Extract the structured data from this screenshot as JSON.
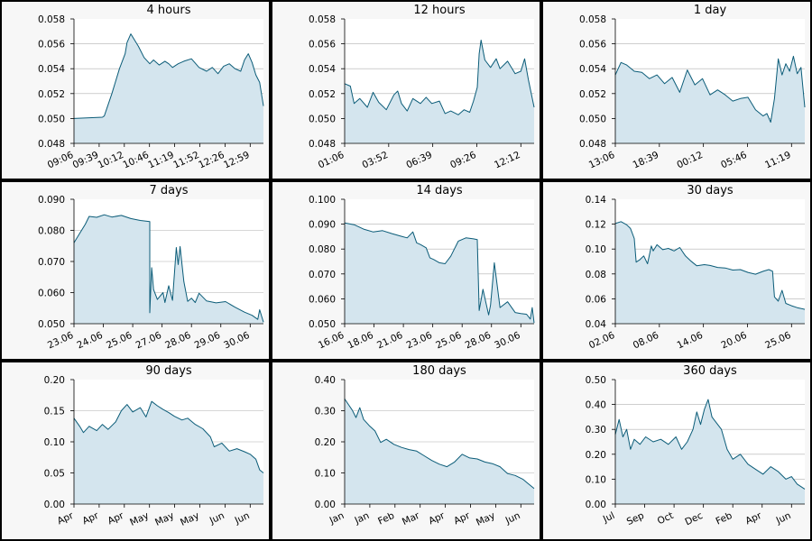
{
  "colors": {
    "line": "#0b5c78",
    "fill": "#d4e5ee",
    "panel_background": "#f7f7f7",
    "plot_background": "#ffffff",
    "grid": "#b0b0b0"
  },
  "chart_data": [
    {
      "type": "area",
      "title": "4 hours",
      "ylim": [
        0.048,
        0.058
      ],
      "yticks": [
        "0.048",
        "0.050",
        "0.052",
        "0.054",
        "0.056",
        "0.058"
      ],
      "xticks": [
        "09:06",
        "09:39",
        "10:12",
        "10:46",
        "11:19",
        "11:52",
        "12:26",
        "12:59"
      ],
      "grid": "horizontal",
      "series": [
        {
          "x": [
            0,
            0.15,
            0.16,
            0.2,
            0.24,
            0.27,
            0.28,
            0.3,
            0.34,
            0.37,
            0.4,
            0.42,
            0.45,
            0.48,
            0.5,
            0.52,
            0.55,
            0.58,
            0.62,
            0.66,
            0.7,
            0.73,
            0.76,
            0.79,
            0.82,
            0.85,
            0.88,
            0.9,
            0.92,
            0.94,
            0.96,
            0.98,
            1.0
          ],
          "y": [
            0.05,
            0.0501,
            0.0502,
            0.052,
            0.054,
            0.0552,
            0.0561,
            0.0568,
            0.0558,
            0.0549,
            0.0544,
            0.0547,
            0.0543,
            0.0546,
            0.0544,
            0.0541,
            0.0544,
            0.0546,
            0.0548,
            0.0541,
            0.0538,
            0.0541,
            0.0536,
            0.0542,
            0.0544,
            0.054,
            0.0538,
            0.0547,
            0.0552,
            0.0545,
            0.0535,
            0.0529,
            0.051
          ]
        }
      ]
    },
    {
      "type": "area",
      "title": "12 hours",
      "ylim": [
        0.048,
        0.058
      ],
      "yticks": [
        "0.048",
        "0.050",
        "0.052",
        "0.054",
        "0.056",
        "0.058"
      ],
      "xticks": [
        "01:06",
        "03:52",
        "06:39",
        "09:26",
        "12:12"
      ],
      "grid": "horizontal",
      "series": [
        {
          "x": [
            0,
            0.03,
            0.05,
            0.08,
            0.12,
            0.15,
            0.18,
            0.22,
            0.26,
            0.28,
            0.3,
            0.33,
            0.36,
            0.4,
            0.43,
            0.46,
            0.5,
            0.53,
            0.56,
            0.6,
            0.63,
            0.66,
            0.68,
            0.7,
            0.71,
            0.72,
            0.74,
            0.77,
            0.8,
            0.82,
            0.86,
            0.9,
            0.93,
            0.95,
            0.97,
            1.0
          ],
          "y": [
            0.0528,
            0.0526,
            0.0512,
            0.0516,
            0.0509,
            0.0521,
            0.0513,
            0.0507,
            0.0519,
            0.0522,
            0.0512,
            0.0506,
            0.0516,
            0.0512,
            0.0517,
            0.0512,
            0.0514,
            0.0504,
            0.0506,
            0.0503,
            0.0507,
            0.0505,
            0.0514,
            0.0525,
            0.0552,
            0.0563,
            0.0547,
            0.0541,
            0.0548,
            0.054,
            0.0546,
            0.0536,
            0.0538,
            0.0548,
            0.0531,
            0.0509
          ]
        }
      ]
    },
    {
      "type": "area",
      "title": "1 day",
      "ylim": [
        0.048,
        0.058
      ],
      "yticks": [
        "0.048",
        "0.050",
        "0.052",
        "0.054",
        "0.056",
        "0.058"
      ],
      "xticks": [
        "13:06",
        "18:39",
        "00:12",
        "05:46",
        "11:19"
      ],
      "grid": "horizontal",
      "series": [
        {
          "x": [
            0,
            0.03,
            0.06,
            0.1,
            0.14,
            0.18,
            0.22,
            0.26,
            0.3,
            0.34,
            0.38,
            0.42,
            0.46,
            0.5,
            0.54,
            0.58,
            0.62,
            0.66,
            0.7,
            0.74,
            0.78,
            0.8,
            0.82,
            0.84,
            0.86,
            0.88,
            0.9,
            0.92,
            0.94,
            0.96,
            0.98,
            1.0
          ],
          "y": [
            0.0535,
            0.0545,
            0.0543,
            0.0538,
            0.0537,
            0.0532,
            0.0535,
            0.0528,
            0.0533,
            0.0521,
            0.0539,
            0.0527,
            0.0532,
            0.0519,
            0.0523,
            0.0519,
            0.0514,
            0.0516,
            0.0517,
            0.0507,
            0.0502,
            0.0504,
            0.0497,
            0.0516,
            0.0548,
            0.0535,
            0.0544,
            0.0538,
            0.055,
            0.0536,
            0.0541,
            0.0509
          ]
        }
      ]
    },
    {
      "type": "area",
      "title": "7 days",
      "ylim": [
        0.05,
        0.09
      ],
      "yticks": [
        "0.050",
        "0.060",
        "0.070",
        "0.080",
        "0.090"
      ],
      "xticks": [
        "23.06",
        "24.06",
        "25.06",
        "27.06",
        "28.06",
        "29.06",
        "30.06"
      ],
      "grid": "horizontal",
      "series": [
        {
          "x": [
            0,
            0.03,
            0.06,
            0.08,
            0.12,
            0.16,
            0.2,
            0.25,
            0.3,
            0.35,
            0.4,
            0.4,
            0.41,
            0.42,
            0.44,
            0.47,
            0.48,
            0.5,
            0.52,
            0.54,
            0.55,
            0.56,
            0.58,
            0.6,
            0.62,
            0.64,
            0.66,
            0.7,
            0.75,
            0.8,
            0.85,
            0.9,
            0.94,
            0.97,
            0.98,
            1.0
          ],
          "y": [
            0.076,
            0.079,
            0.082,
            0.0845,
            0.0842,
            0.085,
            0.0843,
            0.0848,
            0.0838,
            0.0832,
            0.0828,
            0.0535,
            0.068,
            0.061,
            0.0578,
            0.06,
            0.0568,
            0.0622,
            0.0575,
            0.0745,
            0.069,
            0.0748,
            0.0635,
            0.0572,
            0.0582,
            0.0568,
            0.0598,
            0.0573,
            0.0567,
            0.0571,
            0.0553,
            0.0537,
            0.0527,
            0.0514,
            0.0545,
            0.0505
          ]
        }
      ]
    },
    {
      "type": "area",
      "title": "14 days",
      "ylim": [
        0.05,
        0.1
      ],
      "yticks": [
        "0.050",
        "0.060",
        "0.070",
        "0.080",
        "0.090",
        "0.100"
      ],
      "xticks": [
        "16.06",
        "18.06",
        "21.06",
        "23.06",
        "25.06",
        "28.06",
        "30.06"
      ],
      "grid": "horizontal",
      "series": [
        {
          "x": [
            0,
            0.05,
            0.1,
            0.15,
            0.2,
            0.25,
            0.3,
            0.33,
            0.36,
            0.38,
            0.4,
            0.43,
            0.45,
            0.47,
            0.5,
            0.53,
            0.56,
            0.6,
            0.64,
            0.68,
            0.7,
            0.71,
            0.73,
            0.76,
            0.77,
            0.79,
            0.82,
            0.86,
            0.9,
            0.93,
            0.96,
            0.98,
            0.99,
            1.0
          ],
          "y": [
            0.0905,
            0.0898,
            0.088,
            0.0869,
            0.0874,
            0.0862,
            0.0851,
            0.0845,
            0.0869,
            0.0825,
            0.0818,
            0.0805,
            0.0765,
            0.0758,
            0.0745,
            0.0741,
            0.0771,
            0.0832,
            0.0845,
            0.0841,
            0.0838,
            0.0553,
            0.0638,
            0.0535,
            0.0575,
            0.0745,
            0.0565,
            0.0588,
            0.0545,
            0.0541,
            0.0538,
            0.0519,
            0.0565,
            0.0503
          ]
        }
      ]
    },
    {
      "type": "area",
      "title": "30 days",
      "ylim": [
        0.04,
        0.14
      ],
      "yticks": [
        "0.04",
        "0.06",
        "0.08",
        "0.10",
        "0.12",
        "0.14"
      ],
      "xticks": [
        "02.06",
        "08.06",
        "14.06",
        "20.06",
        "25.06"
      ],
      "grid": "horizontal",
      "series": [
        {
          "x": [
            0,
            0.03,
            0.06,
            0.08,
            0.1,
            0.11,
            0.13,
            0.15,
            0.17,
            0.19,
            0.2,
            0.22,
            0.25,
            0.28,
            0.31,
            0.34,
            0.37,
            0.4,
            0.43,
            0.47,
            0.5,
            0.54,
            0.58,
            0.62,
            0.66,
            0.7,
            0.74,
            0.78,
            0.81,
            0.83,
            0.84,
            0.86,
            0.88,
            0.9,
            0.93,
            0.96,
            1.0
          ],
          "y": [
            0.1205,
            0.122,
            0.1195,
            0.1165,
            0.1085,
            0.0895,
            0.0915,
            0.0945,
            0.0882,
            0.1025,
            0.0985,
            0.1035,
            0.0995,
            0.1005,
            0.0985,
            0.1012,
            0.0945,
            0.0902,
            0.0865,
            0.0875,
            0.0868,
            0.0852,
            0.0848,
            0.0831,
            0.0835,
            0.0812,
            0.0798,
            0.0821,
            0.0835,
            0.0822,
            0.0615,
            0.0581,
            0.0668,
            0.0563,
            0.0544,
            0.0529,
            0.0515
          ]
        }
      ]
    },
    {
      "type": "area",
      "title": "90 days",
      "ylim": [
        0.0,
        0.2
      ],
      "yticks": [
        "0.00",
        "0.05",
        "0.10",
        "0.15",
        "0.20"
      ],
      "xticks": [
        "Apr",
        "Apr",
        "Apr",
        "May",
        "May",
        "May",
        "Jun",
        "Jun"
      ],
      "grid": "horizontal",
      "series": [
        {
          "x": [
            0,
            0.03,
            0.05,
            0.08,
            0.12,
            0.15,
            0.18,
            0.22,
            0.25,
            0.28,
            0.31,
            0.35,
            0.38,
            0.41,
            0.44,
            0.47,
            0.5,
            0.53,
            0.57,
            0.6,
            0.64,
            0.68,
            0.72,
            0.74,
            0.78,
            0.82,
            0.86,
            0.9,
            0.93,
            0.96,
            0.98,
            1.0
          ],
          "y": [
            0.138,
            0.125,
            0.115,
            0.125,
            0.118,
            0.128,
            0.12,
            0.132,
            0.15,
            0.16,
            0.148,
            0.155,
            0.14,
            0.165,
            0.158,
            0.152,
            0.147,
            0.141,
            0.135,
            0.138,
            0.128,
            0.121,
            0.108,
            0.092,
            0.098,
            0.085,
            0.089,
            0.084,
            0.08,
            0.072,
            0.055,
            0.05
          ]
        }
      ]
    },
    {
      "type": "area",
      "title": "180 days",
      "ylim": [
        0.0,
        0.4
      ],
      "yticks": [
        "0.00",
        "0.10",
        "0.20",
        "0.30",
        "0.40"
      ],
      "xticks": [
        "Jan",
        "Jan",
        "Feb",
        "Mar",
        "Apr",
        "Apr",
        "May",
        "Jun"
      ],
      "grid": "horizontal",
      "series": [
        {
          "x": [
            0,
            0.02,
            0.04,
            0.06,
            0.08,
            0.1,
            0.13,
            0.16,
            0.19,
            0.22,
            0.26,
            0.3,
            0.34,
            0.38,
            0.42,
            0.46,
            0.5,
            0.54,
            0.58,
            0.62,
            0.66,
            0.7,
            0.74,
            0.78,
            0.82,
            0.86,
            0.9,
            0.94,
            0.97,
            1.0
          ],
          "y": [
            0.338,
            0.32,
            0.302,
            0.278,
            0.31,
            0.272,
            0.252,
            0.235,
            0.198,
            0.208,
            0.192,
            0.182,
            0.175,
            0.17,
            0.155,
            0.14,
            0.128,
            0.12,
            0.135,
            0.16,
            0.148,
            0.145,
            0.135,
            0.13,
            0.12,
            0.098,
            0.092,
            0.08,
            0.065,
            0.05
          ]
        }
      ]
    },
    {
      "type": "area",
      "title": "360 days",
      "ylim": [
        0.0,
        0.5
      ],
      "yticks": [
        "0.00",
        "0.10",
        "0.20",
        "0.30",
        "0.40",
        "0.50"
      ],
      "xticks": [
        "Jul",
        "Sep",
        "Oct",
        "Dec",
        "Feb",
        "Apr",
        "Jun"
      ],
      "grid": "horizontal",
      "series": [
        {
          "x": [
            0,
            0.02,
            0.04,
            0.06,
            0.08,
            0.1,
            0.13,
            0.16,
            0.2,
            0.24,
            0.28,
            0.32,
            0.35,
            0.38,
            0.41,
            0.43,
            0.45,
            0.47,
            0.49,
            0.51,
            0.53,
            0.56,
            0.59,
            0.62,
            0.66,
            0.7,
            0.74,
            0.78,
            0.82,
            0.86,
            0.9,
            0.93,
            0.96,
            0.98,
            1.0
          ],
          "y": [
            0.28,
            0.34,
            0.27,
            0.3,
            0.22,
            0.26,
            0.24,
            0.27,
            0.25,
            0.26,
            0.24,
            0.27,
            0.22,
            0.25,
            0.3,
            0.37,
            0.32,
            0.38,
            0.42,
            0.35,
            0.33,
            0.3,
            0.22,
            0.18,
            0.2,
            0.16,
            0.14,
            0.12,
            0.15,
            0.13,
            0.1,
            0.11,
            0.08,
            0.07,
            0.06
          ]
        }
      ]
    }
  ]
}
